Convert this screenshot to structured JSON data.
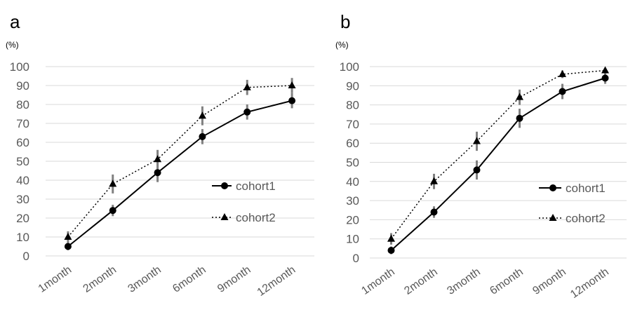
{
  "chart_data": [
    {
      "type": "line",
      "panel_label": "a",
      "unit_label": "(%)",
      "categories": [
        "1month",
        "2month",
        "3month",
        "6month",
        "9month",
        "12month"
      ],
      "ylim": [
        0,
        100
      ],
      "yticks": [
        "0",
        "10",
        "20",
        "30",
        "40",
        "50",
        "60",
        "70",
        "80",
        "90",
        "100"
      ],
      "grid": true,
      "legend_position": "right",
      "series": [
        {
          "name": "cohort1",
          "style": "solid",
          "marker": "circle",
          "values": [
            5,
            24,
            44,
            63,
            76,
            82
          ],
          "errors": [
            2,
            3,
            5,
            4,
            4,
            4
          ]
        },
        {
          "name": "cohort2",
          "style": "dotted",
          "marker": "triangle",
          "values": [
            10,
            38,
            51,
            74,
            89,
            90
          ],
          "errors": [
            3,
            5,
            5,
            5,
            4,
            4
          ]
        }
      ]
    },
    {
      "type": "line",
      "panel_label": "b",
      "unit_label": "(%)",
      "categories": [
        "1month",
        "2month",
        "3month",
        "6month",
        "9month",
        "12month"
      ],
      "ylim": [
        0,
        100
      ],
      "yticks": [
        "0",
        "10",
        "20",
        "30",
        "40",
        "50",
        "60",
        "70",
        "80",
        "90",
        "100"
      ],
      "grid": true,
      "legend_position": "right",
      "series": [
        {
          "name": "cohort1",
          "style": "solid",
          "marker": "circle",
          "values": [
            4,
            24,
            46,
            73,
            87,
            94
          ],
          "errors": [
            2,
            3,
            5,
            5,
            4,
            3
          ]
        },
        {
          "name": "cohort2",
          "style": "dotted",
          "marker": "triangle",
          "values": [
            10,
            40,
            61,
            84,
            96,
            98
          ],
          "errors": [
            3,
            4,
            5,
            4,
            2,
            1
          ]
        }
      ]
    }
  ]
}
